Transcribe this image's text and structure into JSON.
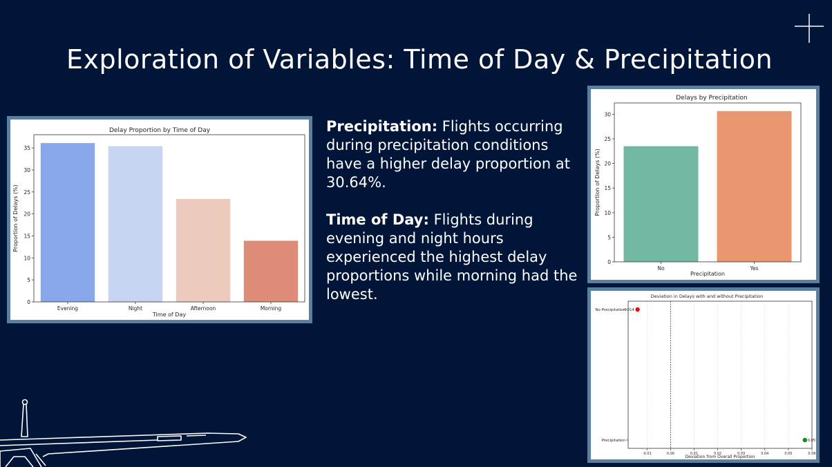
{
  "slide": {
    "title": "Exploration of Variables: Time of Day & Precipitation",
    "background_color": "#001537",
    "frame_color": "#5b7fa0"
  },
  "text": {
    "precip_heading": "Precipitation:",
    "precip_body": " Flights occurring during precipitation conditions have a higher delay proportion at 30.64%.",
    "tod_heading": "Time of Day:",
    "tod_body": " Flights during evening and night hours experienced the highest delay proportions while morning had the lowest."
  },
  "icons": [
    "plus-icon",
    "airplane-outline-icon"
  ],
  "chart_data": [
    {
      "id": "time_of_day",
      "type": "bar",
      "title": "Delay Proportion by Time of Day",
      "xlabel": "Time of Day",
      "ylabel": "Proportion of Delays (%)",
      "categories": [
        "Evening",
        "Night",
        "Afternoon",
        "Morning"
      ],
      "values": [
        36.1,
        35.4,
        23.4,
        13.9
      ],
      "colors": [
        "#8aa7e9",
        "#c7d6f0",
        "#eccbbd",
        "#dd8c77"
      ],
      "ylim": [
        0,
        38
      ],
      "yticks": [
        0,
        5,
        10,
        15,
        20,
        25,
        30,
        35
      ],
      "grid": false
    },
    {
      "id": "precipitation",
      "type": "bar",
      "title": "Delays by Precipitation",
      "xlabel": "Precipitation",
      "ylabel": "Proportion of Delays (%)",
      "categories": [
        "No",
        "Yes"
      ],
      "values": [
        23.5,
        30.64
      ],
      "colors": [
        "#72b7a2",
        "#ea9671"
      ],
      "ylim": [
        0,
        32.3
      ],
      "yticks": [
        0,
        5,
        10,
        15,
        20,
        25,
        30
      ],
      "grid": false
    },
    {
      "id": "deviation",
      "type": "scatter",
      "title": "Deviation in Delays with and without Precipitation",
      "xlabel": "Deviation from Overall Proportion",
      "categories": [
        "No Precipitation",
        "Precipitation"
      ],
      "points": [
        {
          "category": "No Precipitation",
          "x": -0.014,
          "label": "-0.014",
          "color": "#dd1111"
        },
        {
          "category": "Precipitation",
          "x": 0.057,
          "label": "0.057",
          "color": "#138a13"
        }
      ],
      "xlim": [
        -0.018,
        0.06
      ],
      "xticks": [
        -0.01,
        0.0,
        0.01,
        0.02,
        0.03,
        0.04,
        0.05,
        0.06
      ],
      "xtick_labels": [
        "-0.01",
        "0.00",
        "0.01",
        "0.02",
        "0.03",
        "0.04",
        "0.05",
        "0.06"
      ],
      "zero_line": true,
      "grid": true
    }
  ]
}
